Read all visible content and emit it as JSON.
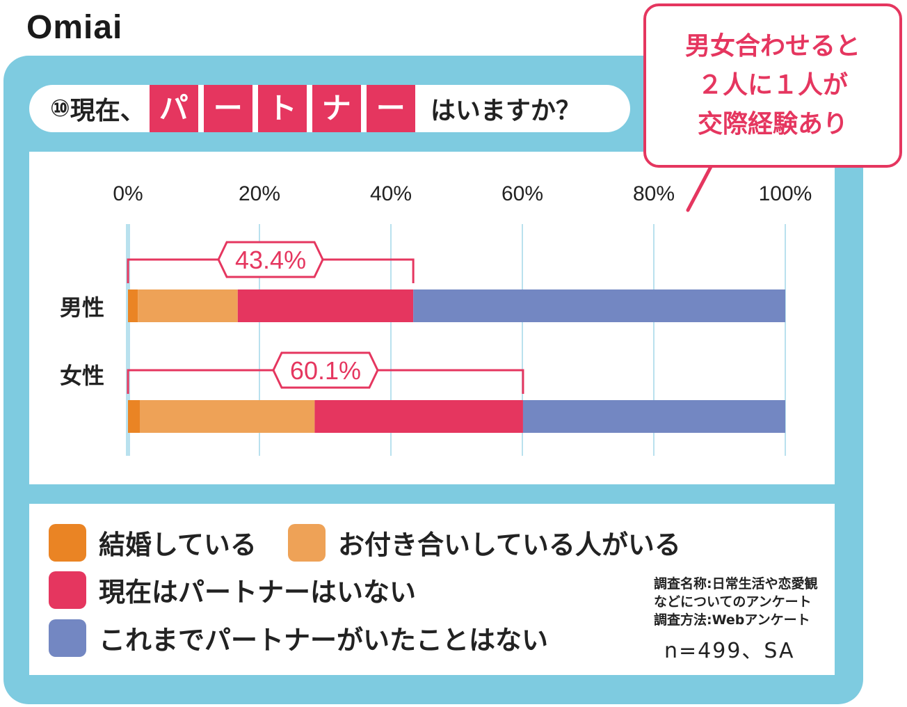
{
  "logo": "Omiai",
  "title": {
    "number": "⑩",
    "prefix": "現在、",
    "highlight": [
      "パ",
      "ー",
      "ト",
      "ナ",
      "ー"
    ],
    "suffix": "はいますか？"
  },
  "callout": {
    "lines": [
      "男女合わせると",
      "２人に１人が",
      "交際経験あり"
    ]
  },
  "chart_data": {
    "type": "bar",
    "orientation": "horizontal-stacked",
    "categories": [
      "男性",
      "女性"
    ],
    "xticks": [
      "0%",
      "20%",
      "40%",
      "60%",
      "80%",
      "100%"
    ],
    "xlim": [
      0,
      100
    ],
    "grid": true,
    "series": [
      {
        "name": "結婚している",
        "color": "#ea8424",
        "values": [
          1.5,
          1.8
        ]
      },
      {
        "name": "お付き合いしている人がいる",
        "color": "#eea257",
        "values": [
          15.2,
          26.6
        ]
      },
      {
        "name": "現在はパートナーはいない",
        "color": "#e5365f",
        "values": [
          26.7,
          31.7
        ]
      },
      {
        "name": "これまでパートナーがいたことはない",
        "color": "#7387c2",
        "values": [
          56.6,
          39.9
        ]
      }
    ],
    "annotations": [
      {
        "category": "男性",
        "value": 43.4,
        "label": "43.4%"
      },
      {
        "category": "女性",
        "value": 60.1,
        "label": "60.1%"
      }
    ]
  },
  "note": {
    "lines": [
      "調査名称:日常生活や恋愛観",
      "などについてのアンケート",
      "調査方法:Webアンケート"
    ],
    "sample": "n=499、SA"
  }
}
